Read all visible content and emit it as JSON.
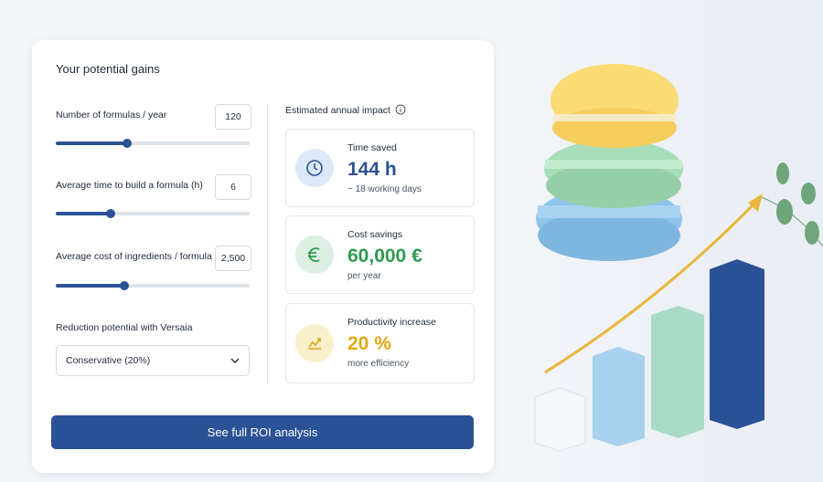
{
  "card": {
    "title": "Your potential gains",
    "inputs": [
      {
        "label": "Number of formulas / year",
        "value": "120"
      },
      {
        "label": "Average time to build a formula (h)",
        "value": "6"
      },
      {
        "label": "Average cost of ingredients / formula (€)",
        "value": "2,500"
      }
    ],
    "reduction": {
      "label": "Reduction potential with Versaia",
      "selected": "Conservative (20%)"
    },
    "impact": {
      "title": "Estimated annual impact",
      "metrics": [
        {
          "label": "Time saved",
          "value": "144 h",
          "note": "~ 18 working days"
        },
        {
          "label": "Cost savings",
          "value": "60,000 €",
          "note": "per year"
        },
        {
          "label": "Productivity increase",
          "value": "20 %",
          "note": "more efficiency"
        }
      ]
    },
    "button": "See full ROI analysis"
  }
}
